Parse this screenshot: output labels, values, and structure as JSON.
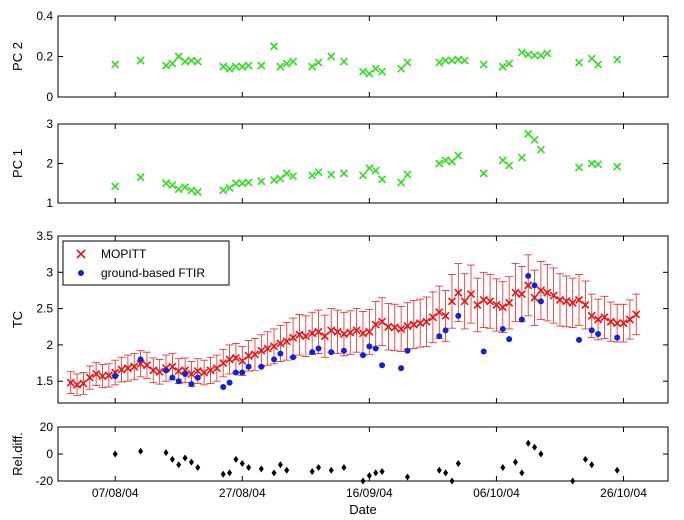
{
  "chart_data": {
    "type": "scatter",
    "x_axis": {
      "label": "Date",
      "range": [
        "2004-07-29",
        "2004-11-02"
      ],
      "ticks": [
        "2004-08-07",
        "2004-08-27",
        "2004-09-16",
        "2004-10-06",
        "2004-10-26"
      ],
      "tick_labels": [
        "07/08/04",
        "27/08/04",
        "16/09/04",
        "06/10/04",
        "26/10/04"
      ]
    },
    "panels": [
      {
        "ylabel": "PC 2",
        "ylim": [
          0,
          0.4
        ],
        "yticks": [
          0,
          0.2,
          0.4
        ],
        "ytick_labels": [
          "0",
          "0.2",
          "0.4"
        ],
        "series": [
          {
            "marker": "x",
            "color": "#33dd22",
            "x": [
              "2004-08-07",
              "2004-08-11",
              "2004-08-15",
              "2004-08-16",
              "2004-08-17",
              "2004-08-18",
              "2004-08-19",
              "2004-08-20",
              "2004-08-24",
              "2004-08-25",
              "2004-08-26",
              "2004-08-27",
              "2004-08-28",
              "2004-08-30",
              "2004-09-01",
              "2004-09-02",
              "2004-09-03",
              "2004-09-04",
              "2004-09-07",
              "2004-09-08",
              "2004-09-10",
              "2004-09-12",
              "2004-09-15",
              "2004-09-16",
              "2004-09-17",
              "2004-09-18",
              "2004-09-21",
              "2004-09-22",
              "2004-09-27",
              "2004-09-28",
              "2004-09-29",
              "2004-09-30",
              "2004-10-01",
              "2004-10-04",
              "2004-10-07",
              "2004-10-08",
              "2004-10-10",
              "2004-10-11",
              "2004-10-12",
              "2004-10-13",
              "2004-10-14",
              "2004-10-19",
              "2004-10-21",
              "2004-10-22",
              "2004-10-25"
            ],
            "y": [
              0.16,
              0.18,
              0.155,
              0.165,
              0.2,
              0.175,
              0.18,
              0.175,
              0.15,
              0.14,
              0.15,
              0.15,
              0.155,
              0.155,
              0.25,
              0.15,
              0.165,
              0.175,
              0.15,
              0.17,
              0.2,
              0.175,
              0.125,
              0.115,
              0.14,
              0.125,
              0.14,
              0.17,
              0.17,
              0.18,
              0.18,
              0.185,
              0.18,
              0.16,
              0.15,
              0.165,
              0.22,
              0.21,
              0.205,
              0.205,
              0.215,
              0.17,
              0.19,
              0.16,
              0.185
            ]
          }
        ]
      },
      {
        "ylabel": "PC 1",
        "ylim": [
          1,
          3
        ],
        "yticks": [
          1,
          2,
          3
        ],
        "ytick_labels": [
          "1",
          "2",
          "3"
        ],
        "series": [
          {
            "marker": "x",
            "color": "#33dd22",
            "x": [
              "2004-08-07",
              "2004-08-11",
              "2004-08-15",
              "2004-08-16",
              "2004-08-17",
              "2004-08-18",
              "2004-08-19",
              "2004-08-20",
              "2004-08-24",
              "2004-08-25",
              "2004-08-26",
              "2004-08-27",
              "2004-08-28",
              "2004-08-30",
              "2004-09-01",
              "2004-09-02",
              "2004-09-03",
              "2004-09-04",
              "2004-09-07",
              "2004-09-08",
              "2004-09-10",
              "2004-09-12",
              "2004-09-15",
              "2004-09-16",
              "2004-09-17",
              "2004-09-18",
              "2004-09-21",
              "2004-09-22",
              "2004-09-27",
              "2004-09-28",
              "2004-09-29",
              "2004-09-30",
              "2004-10-04",
              "2004-10-07",
              "2004-10-08",
              "2004-10-10",
              "2004-10-11",
              "2004-10-12",
              "2004-10-13",
              "2004-10-19",
              "2004-10-21",
              "2004-10-22",
              "2004-10-25"
            ],
            "y": [
              1.42,
              1.65,
              1.5,
              1.45,
              1.35,
              1.4,
              1.32,
              1.28,
              1.32,
              1.38,
              1.5,
              1.5,
              1.52,
              1.55,
              1.58,
              1.62,
              1.75,
              1.68,
              1.7,
              1.78,
              1.72,
              1.75,
              1.7,
              1.88,
              1.82,
              1.6,
              1.52,
              1.72,
              2.0,
              2.08,
              2.05,
              2.2,
              1.75,
              2.08,
              1.95,
              2.15,
              2.75,
              2.6,
              2.35,
              1.9,
              2.0,
              1.98,
              1.92
            ]
          }
        ]
      },
      {
        "ylabel": "TC",
        "ylim": [
          1.2,
          3.5
        ],
        "yticks": [
          1.5,
          2,
          2.5,
          3,
          3.5
        ],
        "ytick_labels": [
          "1.5",
          "2",
          "2.5",
          "3",
          "3.5"
        ],
        "legend": {
          "position": "top-left",
          "entries": [
            {
              "label": "MOPITT",
              "marker": "x",
              "color": "#ee1111"
            },
            {
              "label": "ground-based FTIR",
              "marker": "dot",
              "color": "#1122dd"
            }
          ]
        },
        "series": [
          {
            "name": "MOPITT",
            "marker": "x",
            "color": "#ee1111",
            "errorbar_color": "#ee2222",
            "x": [
              "2004-07-31",
              "2004-08-01",
              "2004-08-02",
              "2004-08-03",
              "2004-08-04",
              "2004-08-05",
              "2004-08-06",
              "2004-08-07",
              "2004-08-08",
              "2004-08-09",
              "2004-08-10",
              "2004-08-11",
              "2004-08-12",
              "2004-08-13",
              "2004-08-14",
              "2004-08-15",
              "2004-08-16",
              "2004-08-17",
              "2004-08-18",
              "2004-08-19",
              "2004-08-20",
              "2004-08-21",
              "2004-08-22",
              "2004-08-23",
              "2004-08-24",
              "2004-08-25",
              "2004-08-26",
              "2004-08-27",
              "2004-08-28",
              "2004-08-29",
              "2004-08-30",
              "2004-08-31",
              "2004-09-01",
              "2004-09-02",
              "2004-09-03",
              "2004-09-04",
              "2004-09-05",
              "2004-09-06",
              "2004-09-07",
              "2004-09-08",
              "2004-09-09",
              "2004-09-10",
              "2004-09-11",
              "2004-09-12",
              "2004-09-13",
              "2004-09-14",
              "2004-09-15",
              "2004-09-16",
              "2004-09-17",
              "2004-09-18",
              "2004-09-19",
              "2004-09-20",
              "2004-09-21",
              "2004-09-22",
              "2004-09-23",
              "2004-09-24",
              "2004-09-25",
              "2004-09-26",
              "2004-09-27",
              "2004-09-28",
              "2004-09-29",
              "2004-09-30",
              "2004-10-01",
              "2004-10-02",
              "2004-10-03",
              "2004-10-04",
              "2004-10-05",
              "2004-10-06",
              "2004-10-07",
              "2004-10-08",
              "2004-10-09",
              "2004-10-10",
              "2004-10-11",
              "2004-10-12",
              "2004-10-13",
              "2004-10-14",
              "2004-10-15",
              "2004-10-16",
              "2004-10-17",
              "2004-10-18",
              "2004-10-19",
              "2004-10-20",
              "2004-10-21",
              "2004-10-22",
              "2004-10-23",
              "2004-10-24",
              "2004-10-25",
              "2004-10-26",
              "2004-10-27",
              "2004-10-28"
            ],
            "y": [
              1.48,
              1.45,
              1.47,
              1.55,
              1.6,
              1.57,
              1.58,
              1.62,
              1.66,
              1.68,
              1.7,
              1.74,
              1.72,
              1.65,
              1.63,
              1.68,
              1.7,
              1.64,
              1.65,
              1.6,
              1.64,
              1.62,
              1.65,
              1.68,
              1.75,
              1.8,
              1.82,
              1.78,
              1.85,
              1.87,
              1.92,
              1.95,
              1.98,
              2.02,
              2.05,
              2.1,
              2.14,
              2.12,
              2.16,
              2.18,
              2.12,
              2.2,
              2.18,
              2.15,
              2.17,
              2.2,
              2.16,
              2.18,
              2.28,
              2.32,
              2.25,
              2.24,
              2.22,
              2.26,
              2.28,
              2.3,
              2.32,
              2.38,
              2.45,
              2.4,
              2.6,
              2.72,
              2.6,
              2.7,
              2.55,
              2.62,
              2.6,
              2.55,
              2.52,
              2.58,
              2.72,
              2.7,
              2.82,
              2.65,
              2.75,
              2.72,
              2.68,
              2.62,
              2.6,
              2.58,
              2.62,
              2.55,
              2.4,
              2.35,
              2.38,
              2.32,
              2.3,
              2.3,
              2.35,
              2.42
            ],
            "err": [
              0.15,
              0.15,
              0.15,
              0.16,
              0.16,
              0.16,
              0.16,
              0.17,
              0.17,
              0.18,
              0.18,
              0.18,
              0.18,
              0.17,
              0.17,
              0.18,
              0.18,
              0.17,
              0.17,
              0.17,
              0.17,
              0.17,
              0.18,
              0.18,
              0.19,
              0.2,
              0.2,
              0.2,
              0.21,
              0.22,
              0.22,
              0.23,
              0.24,
              0.25,
              0.26,
              0.27,
              0.28,
              0.28,
              0.29,
              0.3,
              0.29,
              0.3,
              0.3,
              0.3,
              0.3,
              0.3,
              0.3,
              0.31,
              0.32,
              0.33,
              0.32,
              0.32,
              0.31,
              0.32,
              0.33,
              0.33,
              0.34,
              0.35,
              0.36,
              0.35,
              0.37,
              0.4,
              0.38,
              0.4,
              0.37,
              0.38,
              0.37,
              0.36,
              0.35,
              0.36,
              0.4,
              0.38,
              0.42,
              0.38,
              0.4,
              0.39,
              0.38,
              0.36,
              0.35,
              0.34,
              0.35,
              0.33,
              0.3,
              0.28,
              0.29,
              0.27,
              0.26,
              0.26,
              0.27,
              0.28
            ]
          },
          {
            "name": "ground-based FTIR",
            "marker": "dot",
            "color": "#1122dd",
            "x": [
              "2004-08-07",
              "2004-08-11",
              "2004-08-15",
              "2004-08-16",
              "2004-08-17",
              "2004-08-18",
              "2004-08-19",
              "2004-08-20",
              "2004-08-24",
              "2004-08-25",
              "2004-08-26",
              "2004-08-27",
              "2004-08-28",
              "2004-08-30",
              "2004-09-01",
              "2004-09-02",
              "2004-09-04",
              "2004-09-07",
              "2004-09-08",
              "2004-09-10",
              "2004-09-12",
              "2004-09-15",
              "2004-09-16",
              "2004-09-17",
              "2004-09-18",
              "2004-09-21",
              "2004-09-22",
              "2004-09-27",
              "2004-09-28",
              "2004-09-30",
              "2004-10-04",
              "2004-10-07",
              "2004-10-08",
              "2004-10-10",
              "2004-10-11",
              "2004-10-12",
              "2004-10-13",
              "2004-10-19",
              "2004-10-21",
              "2004-10-22",
              "2004-10-25"
            ],
            "y": [
              1.57,
              1.8,
              1.65,
              1.55,
              1.5,
              1.6,
              1.46,
              1.55,
              1.42,
              1.48,
              1.62,
              1.62,
              1.7,
              1.7,
              1.8,
              1.88,
              1.83,
              1.9,
              1.95,
              1.9,
              1.92,
              1.86,
              1.98,
              1.95,
              1.72,
              1.68,
              1.92,
              2.12,
              2.2,
              2.4,
              1.91,
              2.22,
              2.08,
              2.35,
              2.95,
              2.82,
              2.6,
              2.07,
              2.2,
              2.15,
              2.1
            ]
          }
        ]
      },
      {
        "ylabel": "Rel.diff.",
        "ylim": [
          -20,
          20
        ],
        "yticks": [
          -20,
          0,
          20
        ],
        "ytick_labels": [
          "-20",
          "0",
          "20"
        ],
        "series": [
          {
            "marker": "diamond",
            "color": "#000000",
            "x": [
              "2004-08-07",
              "2004-08-11",
              "2004-08-15",
              "2004-08-16",
              "2004-08-17",
              "2004-08-18",
              "2004-08-19",
              "2004-08-20",
              "2004-08-24",
              "2004-08-25",
              "2004-08-26",
              "2004-08-27",
              "2004-08-28",
              "2004-08-30",
              "2004-09-01",
              "2004-09-02",
              "2004-09-03",
              "2004-09-07",
              "2004-09-08",
              "2004-09-10",
              "2004-09-12",
              "2004-09-15",
              "2004-09-16",
              "2004-09-17",
              "2004-09-18",
              "2004-09-22",
              "2004-09-27",
              "2004-09-28",
              "2004-09-29",
              "2004-09-30",
              "2004-10-07",
              "2004-10-09",
              "2004-10-10",
              "2004-10-11",
              "2004-10-12",
              "2004-10-13",
              "2004-10-18",
              "2004-10-20",
              "2004-10-21",
              "2004-10-25"
            ],
            "y": [
              0,
              2,
              1,
              -4,
              -8,
              -3,
              -6,
              -10,
              -15,
              -14,
              -4,
              -7,
              -10,
              -11,
              -14,
              -8,
              -12,
              -13,
              -10,
              -12,
              -10,
              -20,
              -16,
              -14,
              -13,
              -17,
              -12,
              -14,
              -20,
              -7,
              -10,
              -6,
              -14,
              8,
              5,
              0,
              -20,
              -4,
              -8,
              -12
            ]
          }
        ]
      }
    ]
  }
}
